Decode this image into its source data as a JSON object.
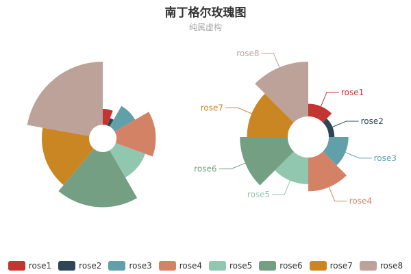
{
  "title": "南丁格尔玫瑰图",
  "subtitle": "纯属虚构",
  "chart_data": [
    {
      "type": "pie",
      "variant": "rose-radius",
      "categories": [
        "rose1",
        "rose2",
        "rose3",
        "rose4",
        "rose5",
        "rose6",
        "rose7",
        "rose8"
      ],
      "values": [
        10,
        5,
        15,
        25,
        20,
        35,
        30,
        40
      ],
      "labels_shown": false
    },
    {
      "type": "pie",
      "variant": "rose-area",
      "categories": [
        "rose1",
        "rose2",
        "rose3",
        "rose4",
        "rose5",
        "rose6",
        "rose7",
        "rose8"
      ],
      "values": [
        10,
        5,
        15,
        25,
        20,
        35,
        30,
        40
      ],
      "labels_shown": true
    }
  ],
  "legend": {
    "position": "bottom",
    "items": [
      {
        "label": "rose1",
        "color": "#c23531"
      },
      {
        "label": "rose2",
        "color": "#2f4554"
      },
      {
        "label": "rose3",
        "color": "#61a0a8"
      },
      {
        "label": "rose4",
        "color": "#d48265"
      },
      {
        "label": "rose5",
        "color": "#91c7ae"
      },
      {
        "label": "rose6",
        "color": "#749f83"
      },
      {
        "label": "rose7",
        "color": "#ca8622"
      },
      {
        "label": "rose8",
        "color": "#bda29a"
      }
    ]
  }
}
